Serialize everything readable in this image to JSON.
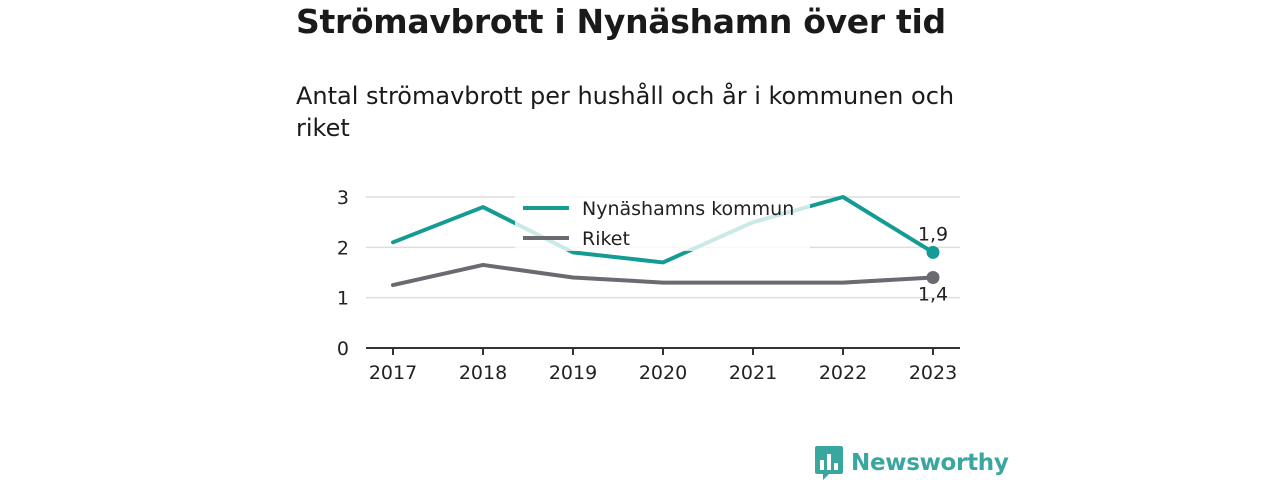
{
  "title": "Strömavbrott i Nynäshamn över tid",
  "subtitle": "Antal strömavbrott per hushåll och år i kommunen och riket",
  "brand": {
    "name": "Newsworthy",
    "icon": "bar-chart-speech-icon",
    "color": "#3aa6a0"
  },
  "chart_data": {
    "type": "line",
    "x": [
      "2017",
      "2018",
      "2019",
      "2020",
      "2021",
      "2022",
      "2023"
    ],
    "ylim": [
      0,
      3
    ],
    "yticks": [
      "0",
      "1",
      "2",
      "3"
    ],
    "grid": true,
    "legend_position": "top-center",
    "series": [
      {
        "name": "Nynäshamns kommun",
        "color": "#149c94",
        "values": [
          2.1,
          2.8,
          1.9,
          1.7,
          2.5,
          3.0,
          1.9
        ],
        "end_label": "1,9"
      },
      {
        "name": "Riket",
        "color": "#6b6a70",
        "values": [
          1.25,
          1.65,
          1.4,
          1.3,
          1.3,
          1.3,
          1.4
        ],
        "end_label": "1,4"
      }
    ]
  }
}
